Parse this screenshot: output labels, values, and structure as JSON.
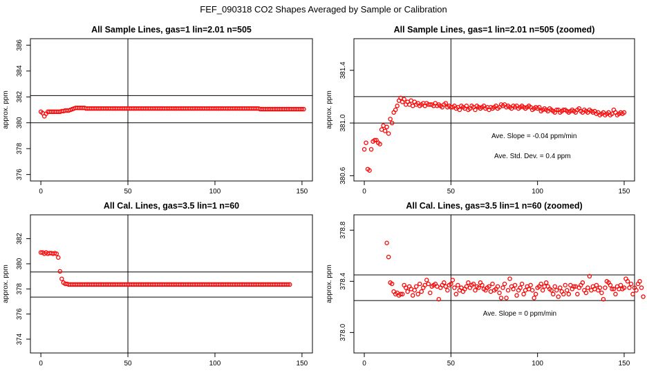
{
  "main_title": "FEF_090318  CO2 Shapes Averaged by Sample or Calibration",
  "chart_data": [
    {
      "type": "scatter",
      "title": "All Sample Lines, gas=1 lin=2.01 n=505",
      "ylabel": "approx. ppm",
      "xlabel": "",
      "xlim": [
        -6,
        156
      ],
      "ylim": [
        375.5,
        386.5
      ],
      "x_ticks": [
        0,
        50,
        100,
        150
      ],
      "y_ticks": [
        376,
        378,
        380,
        382,
        384,
        386
      ],
      "hlines": [
        382.1,
        380.0
      ],
      "vline": 50,
      "point_color": "#ff0000",
      "annotations": [],
      "y_values": [
        380.85,
        380.75,
        380.5,
        380.7,
        380.85,
        380.85,
        380.85,
        380.85,
        380.85,
        380.85,
        380.85,
        380.85,
        380.9,
        380.9,
        380.95,
        380.95,
        380.95,
        381.0,
        381.05,
        381.1,
        381.15,
        381.15,
        381.15,
        381.15,
        381.15,
        381.15,
        381.1,
        381.1,
        381.1,
        381.1,
        381.1,
        381.1,
        381.1,
        381.1,
        381.1,
        381.1,
        381.1,
        381.1,
        381.1,
        381.1,
        381.1,
        381.1,
        381.1,
        381.1,
        381.1,
        381.1,
        381.1,
        381.1,
        381.1,
        381.1,
        381.1,
        381.1,
        381.1,
        381.1,
        381.1,
        381.1,
        381.1,
        381.1,
        381.1,
        381.1,
        381.1,
        381.1,
        381.1,
        381.1,
        381.1,
        381.1,
        381.1,
        381.1,
        381.1,
        381.1,
        381.1,
        381.1,
        381.1,
        381.1,
        381.1,
        381.1,
        381.1,
        381.1,
        381.1,
        381.1,
        381.1,
        381.1,
        381.1,
        381.1,
        381.1,
        381.1,
        381.1,
        381.1,
        381.1,
        381.1,
        381.1,
        381.1,
        381.1,
        381.1,
        381.1,
        381.1,
        381.1,
        381.1,
        381.1,
        381.1,
        381.1,
        381.1,
        381.1,
        381.1,
        381.1,
        381.1,
        381.1,
        381.1,
        381.1,
        381.1,
        381.1,
        381.1,
        381.1,
        381.1,
        381.1,
        381.1,
        381.1,
        381.1,
        381.1,
        381.1,
        381.1,
        381.1,
        381.1,
        381.1,
        381.1,
        381.1,
        381.05,
        381.05,
        381.05,
        381.05,
        381.05,
        381.05,
        381.05,
        381.05,
        381.05,
        381.05,
        381.05,
        381.05,
        381.05,
        381.05,
        381.05,
        381.05,
        381.05,
        381.05,
        381.05,
        381.05,
        381.05,
        381.05,
        381.05,
        381.05,
        381.05,
        381.05
      ]
    },
    {
      "type": "scatter",
      "title": "All Sample Lines, gas=1 lin=2.01 n=505 (zoomed)",
      "ylabel": "approx. ppm",
      "xlabel": "",
      "xlim": [
        -6,
        156
      ],
      "ylim": [
        380.56,
        381.64
      ],
      "x_ticks": [
        0,
        50,
        100,
        150
      ],
      "y_ticks": [
        380.6,
        381.0,
        381.4
      ],
      "hlines": [
        381.2,
        381.0
      ],
      "vline": 50,
      "point_color": "#ff0000",
      "annotations": [
        "Ave. Slope =  -0.04  ppm/min",
        "Ave. Std. Dev. =  0.4  ppm"
      ],
      "y_values": [
        380.8,
        380.85,
        380.65,
        380.64,
        380.8,
        380.86,
        380.87,
        380.87,
        380.85,
        380.84,
        380.95,
        380.98,
        380.94,
        380.97,
        380.92,
        381.03,
        381.0,
        381.08,
        381.1,
        381.13,
        381.17,
        381.19,
        381.16,
        381.18,
        381.14,
        381.16,
        381.14,
        381.17,
        381.13,
        381.16,
        381.14,
        381.15,
        381.13,
        381.14,
        381.15,
        381.13,
        381.15,
        381.14,
        381.14,
        381.14,
        381.13,
        381.15,
        381.13,
        381.14,
        381.13,
        381.12,
        381.14,
        381.15,
        381.12,
        381.13,
        381.12,
        381.12,
        381.13,
        381.11,
        381.12,
        381.1,
        381.13,
        381.12,
        381.11,
        381.13,
        381.1,
        381.11,
        381.13,
        381.12,
        381.1,
        381.13,
        381.12,
        381.11,
        381.12,
        381.13,
        381.11,
        381.12,
        381.1,
        381.12,
        381.11,
        381.12,
        381.13,
        381.11,
        381.12,
        381.14,
        381.13,
        381.14,
        381.12,
        381.13,
        381.12,
        381.11,
        381.13,
        381.12,
        381.13,
        381.11,
        381.12,
        381.13,
        381.12,
        381.11,
        381.12,
        381.13,
        381.12,
        381.1,
        381.11,
        381.12,
        381.11,
        381.12,
        381.09,
        381.1,
        381.11,
        381.1,
        381.09,
        381.11,
        381.1,
        381.09,
        381.08,
        381.1,
        381.1,
        381.08,
        381.09,
        381.1,
        381.1,
        381.09,
        381.08,
        381.09,
        381.1,
        381.09,
        381.08,
        381.1,
        381.11,
        381.09,
        381.08,
        381.1,
        381.09,
        381.08,
        381.1,
        381.09,
        381.08,
        381.09,
        381.07,
        381.08,
        381.06,
        381.07,
        381.08,
        381.06,
        381.07,
        381.08,
        381.06,
        381.07,
        381.1,
        381.08,
        381.06,
        381.07,
        381.08,
        381.07,
        381.08
      ]
    },
    {
      "type": "scatter",
      "title": "All Cal. Lines, gas=3.5 lin=1 n=60",
      "ylabel": "approx. ppm",
      "xlabel": "",
      "xlim": [
        -6,
        156
      ],
      "ylim": [
        372.9,
        383.9
      ],
      "x_ticks": [
        0,
        50,
        100,
        150
      ],
      "y_ticks": [
        374,
        376,
        378,
        380,
        382
      ],
      "hlines": [
        379.35,
        377.35
      ],
      "vline": 50,
      "point_color": "#ff0000",
      "annotations": [],
      "y_values": [
        380.9,
        380.9,
        380.8,
        380.9,
        380.8,
        380.85,
        380.85,
        380.8,
        380.85,
        380.8,
        380.5,
        379.4,
        378.8,
        378.5,
        378.4,
        378.4,
        378.35,
        378.35,
        378.35,
        378.35,
        378.35,
        378.35,
        378.35,
        378.35,
        378.35,
        378.35,
        378.35,
        378.35,
        378.35,
        378.35,
        378.35,
        378.35,
        378.35,
        378.35,
        378.35,
        378.35,
        378.35,
        378.35,
        378.35,
        378.35,
        378.35,
        378.35,
        378.35,
        378.35,
        378.35,
        378.35,
        378.35,
        378.35,
        378.35,
        378.35,
        378.35,
        378.35,
        378.35,
        378.35,
        378.35,
        378.35,
        378.35,
        378.35,
        378.35,
        378.35,
        378.35,
        378.35,
        378.35,
        378.35,
        378.35,
        378.35,
        378.35,
        378.35,
        378.35,
        378.35,
        378.35,
        378.35,
        378.35,
        378.35,
        378.35,
        378.35,
        378.35,
        378.35,
        378.35,
        378.35,
        378.35,
        378.35,
        378.35,
        378.35,
        378.35,
        378.35,
        378.35,
        378.35,
        378.35,
        378.35,
        378.35,
        378.35,
        378.35,
        378.35,
        378.35,
        378.35,
        378.35,
        378.35,
        378.35,
        378.35,
        378.35,
        378.35,
        378.35,
        378.35,
        378.35,
        378.35,
        378.35,
        378.35,
        378.35,
        378.35,
        378.35,
        378.35,
        378.35,
        378.35,
        378.35,
        378.35,
        378.35,
        378.35,
        378.35,
        378.35,
        378.35,
        378.35,
        378.35,
        378.35,
        378.35,
        378.35,
        378.35,
        378.35,
        378.35,
        378.35,
        378.35,
        378.35,
        378.35,
        378.35,
        378.35,
        378.35,
        378.35,
        378.35,
        378.35,
        378.35,
        378.35,
        378.35,
        378.35,
        378.35
      ]
    },
    {
      "type": "scatter",
      "title": "All Cal. Lines, gas=3.5 lin=1 n=60 (zoomed)",
      "ylabel": "approx. ppm",
      "xlabel": "",
      "xlim": [
        -6,
        156
      ],
      "ylim": [
        377.84,
        378.92
      ],
      "x_ticks": [
        0,
        50,
        100,
        150
      ],
      "y_ticks": [
        378.0,
        378.4,
        378.8
      ],
      "hlines": [
        378.45,
        378.25
      ],
      "vline": 50,
      "point_color": "#ff0000",
      "annotations": [
        "Ave. Slope =  0  ppm/min"
      ],
      "x_start": 13,
      "y_values": [
        378.7,
        378.59,
        378.39,
        378.38,
        378.32,
        378.3,
        378.31,
        378.29,
        378.3,
        378.3,
        378.37,
        378.35,
        378.32,
        378.36,
        378.34,
        378.29,
        378.33,
        378.36,
        378.3,
        378.38,
        378.32,
        378.35,
        378.37,
        378.41,
        378.38,
        378.31,
        378.36,
        378.37,
        378.38,
        378.36,
        378.26,
        378.35,
        378.37,
        378.39,
        378.36,
        378.33,
        378.37,
        378.38,
        378.41,
        378.35,
        378.3,
        378.37,
        378.33,
        378.35,
        378.32,
        378.34,
        378.36,
        378.39,
        378.35,
        378.37,
        378.38,
        378.33,
        378.36,
        378.35,
        378.39,
        378.37,
        378.34,
        378.33,
        378.35,
        378.36,
        378.32,
        378.38,
        378.33,
        378.34,
        378.36,
        378.31,
        378.27,
        378.35,
        378.38,
        378.27,
        378.33,
        378.42,
        378.36,
        378.34,
        378.37,
        378.29,
        378.33,
        378.35,
        378.38,
        378.3,
        378.33,
        378.36,
        378.34,
        378.37,
        378.33,
        378.27,
        378.3,
        378.35,
        378.36,
        378.38,
        378.33,
        378.36,
        378.39,
        378.36,
        378.34,
        378.33,
        378.3,
        378.36,
        378.33,
        378.28,
        378.35,
        378.32,
        378.3,
        378.37,
        378.33,
        378.3,
        378.37,
        378.34,
        378.36,
        378.36,
        378.3,
        378.35,
        378.37,
        378.39,
        378.33,
        378.31,
        378.35,
        378.44,
        378.33,
        378.36,
        378.34,
        378.37,
        378.33,
        378.35,
        378.31,
        378.26,
        378.35,
        378.4,
        378.39,
        378.37,
        378.34,
        378.34,
        378.3,
        378.36,
        378.34,
        378.37,
        378.34,
        378.35,
        378.42,
        378.4,
        378.35,
        378.38,
        378.3,
        378.35,
        378.33,
        378.38,
        378.4,
        378.35,
        378.28
      ]
    }
  ]
}
